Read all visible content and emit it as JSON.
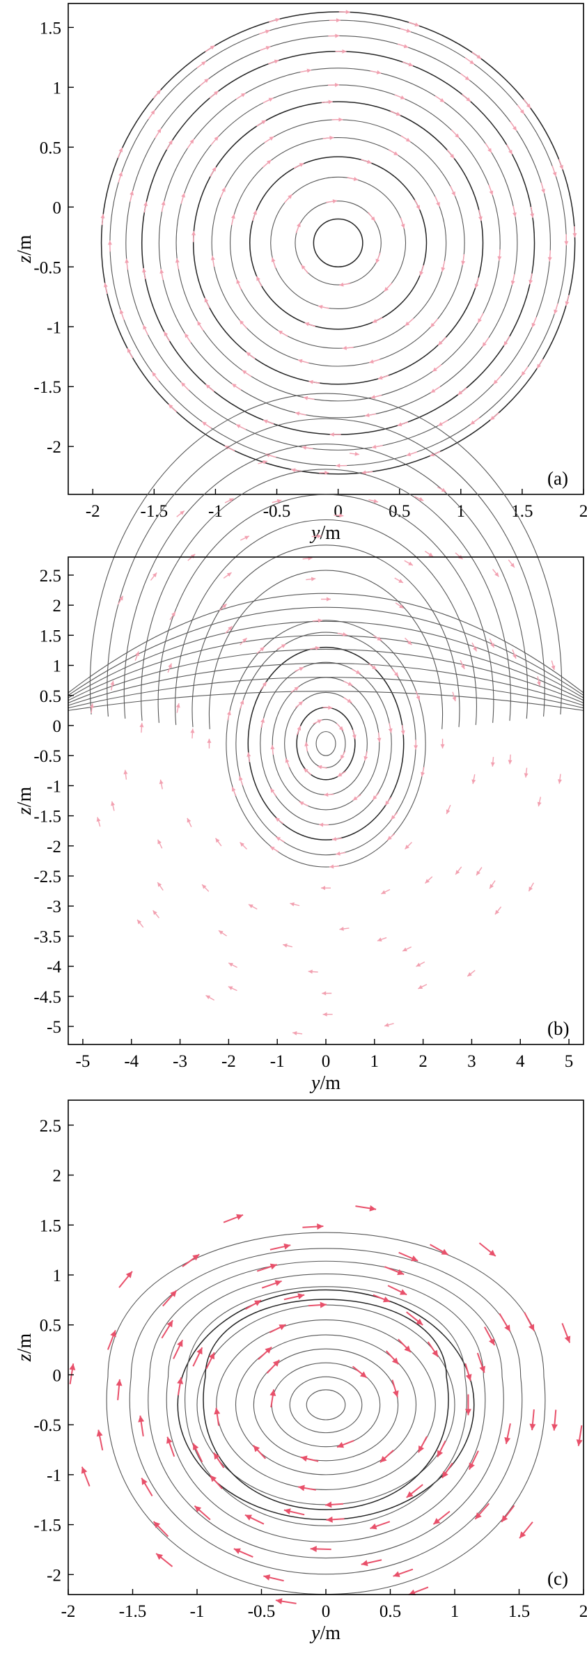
{
  "chart_data": [
    {
      "type": "streamline",
      "panel_label": "(a)",
      "xlabel_var": "y",
      "xlabel_unit": "/m",
      "ylabel_var": "z",
      "ylabel_unit": "/m",
      "xlim": [
        -2.2,
        2.0
      ],
      "ylim": [
        -2.4,
        1.7
      ],
      "xticks": [
        -2,
        -1.5,
        -1,
        -0.5,
        0,
        0.5,
        1,
        1.5,
        2
      ],
      "yticks": [
        1.5,
        1,
        0.5,
        0,
        -0.5,
        -1,
        -1.5,
        -2
      ],
      "vortex_center": [
        0,
        -0.3
      ],
      "streamline_radii": [
        0.2,
        0.35,
        0.55,
        0.72,
        0.88,
        1.03,
        1.18,
        1.32,
        1.46,
        1.6,
        1.73,
        1.86,
        1.93
      ],
      "rotation": "clockwise",
      "vector_style": "pale"
    },
    {
      "type": "streamline",
      "panel_label": "(b)",
      "xlabel_var": "y",
      "xlabel_unit": "/m",
      "ylabel_var": "z",
      "ylabel_unit": "/m",
      "xlim": [
        -5.3,
        5.3
      ],
      "ylim": [
        -5.3,
        2.8
      ],
      "xticks": [
        -5,
        -4,
        -3,
        -2,
        -1,
        0,
        1,
        2,
        3,
        4,
        5
      ],
      "yticks": [
        2.5,
        2,
        1.5,
        1,
        0.5,
        0,
        -0.5,
        -1,
        -1.5,
        -2,
        -2.5,
        -3,
        -3.5,
        -4,
        -4.5,
        -5
      ],
      "vortex_center": [
        0,
        -0.3
      ],
      "inner_radii": [
        0.2,
        0.4,
        0.6,
        0.85,
        1.1,
        1.35,
        1.6,
        1.85,
        2.05
      ],
      "outer_radii": [
        2.4,
        2.75,
        3.1,
        3.45,
        3.8,
        4.15,
        4.5,
        4.85
      ],
      "upper_arc_offsets": [
        0,
        0.28,
        0.56,
        0.84,
        1.12,
        1.4,
        1.68,
        1.96
      ],
      "rotation": "clockwise",
      "vector_style": "pale"
    },
    {
      "type": "streamline",
      "panel_label": "(c)",
      "xlabel_var": "y",
      "xlabel_unit": "/m",
      "ylabel_var": "z",
      "ylabel_unit": "/m",
      "xlim": [
        -2.0,
        2.0
      ],
      "ylim": [
        -2.2,
        2.75
      ],
      "xticks": [
        -2,
        -1.5,
        -1,
        -0.5,
        0,
        0.5,
        1,
        1.5,
        2
      ],
      "yticks": [
        2.5,
        2,
        1.5,
        1,
        0.5,
        0,
        -0.5,
        -1,
        -1.5,
        -2
      ],
      "vortex_center": [
        0,
        -0.3
      ],
      "rotation": "clockwise",
      "vector_style": "bold"
    }
  ]
}
